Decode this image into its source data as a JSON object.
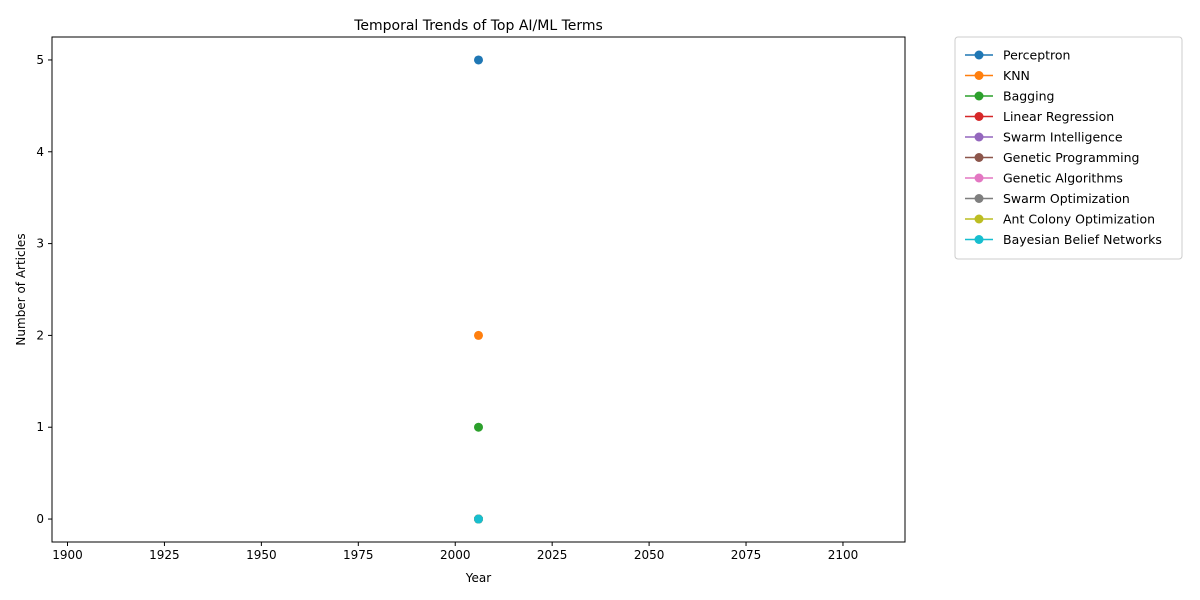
{
  "chart_data": {
    "type": "line",
    "title": "Temporal Trends of Top AI/ML Terms",
    "xlabel": "Year",
    "ylabel": "Number of Articles",
    "xlim": [
      1896,
      2116
    ],
    "ylim": [
      -0.25,
      5.25
    ],
    "xticks": [
      1900,
      1925,
      1950,
      1975,
      2000,
      2025,
      2050,
      2075,
      2100
    ],
    "yticks": [
      0,
      1,
      2,
      3,
      4,
      5
    ],
    "grid": false,
    "legend_position": "outside-right",
    "series": [
      {
        "name": "Perceptron",
        "color": "#1f77b4",
        "x": [
          2006
        ],
        "y": [
          5
        ]
      },
      {
        "name": "KNN",
        "color": "#ff7f0e",
        "x": [
          2006
        ],
        "y": [
          2
        ]
      },
      {
        "name": "Bagging",
        "color": "#2ca02c",
        "x": [
          2006
        ],
        "y": [
          1
        ]
      },
      {
        "name": "Linear Regression",
        "color": "#d62728",
        "x": [
          2006
        ],
        "y": [
          0
        ]
      },
      {
        "name": "Swarm Intelligence",
        "color": "#9467bd",
        "x": [
          2006
        ],
        "y": [
          0
        ]
      },
      {
        "name": "Genetic Programming",
        "color": "#8c564b",
        "x": [
          2006
        ],
        "y": [
          0
        ]
      },
      {
        "name": "Genetic Algorithms",
        "color": "#e377c2",
        "x": [
          2006
        ],
        "y": [
          0
        ]
      },
      {
        "name": "Swarm Optimization",
        "color": "#7f7f7f",
        "x": [
          2006
        ],
        "y": [
          0
        ]
      },
      {
        "name": "Ant Colony Optimization",
        "color": "#bcbd22",
        "x": [
          2006
        ],
        "y": [
          0
        ]
      },
      {
        "name": "Bayesian Belief Networks",
        "color": "#17becf",
        "x": [
          2006
        ],
        "y": [
          0
        ]
      }
    ]
  }
}
